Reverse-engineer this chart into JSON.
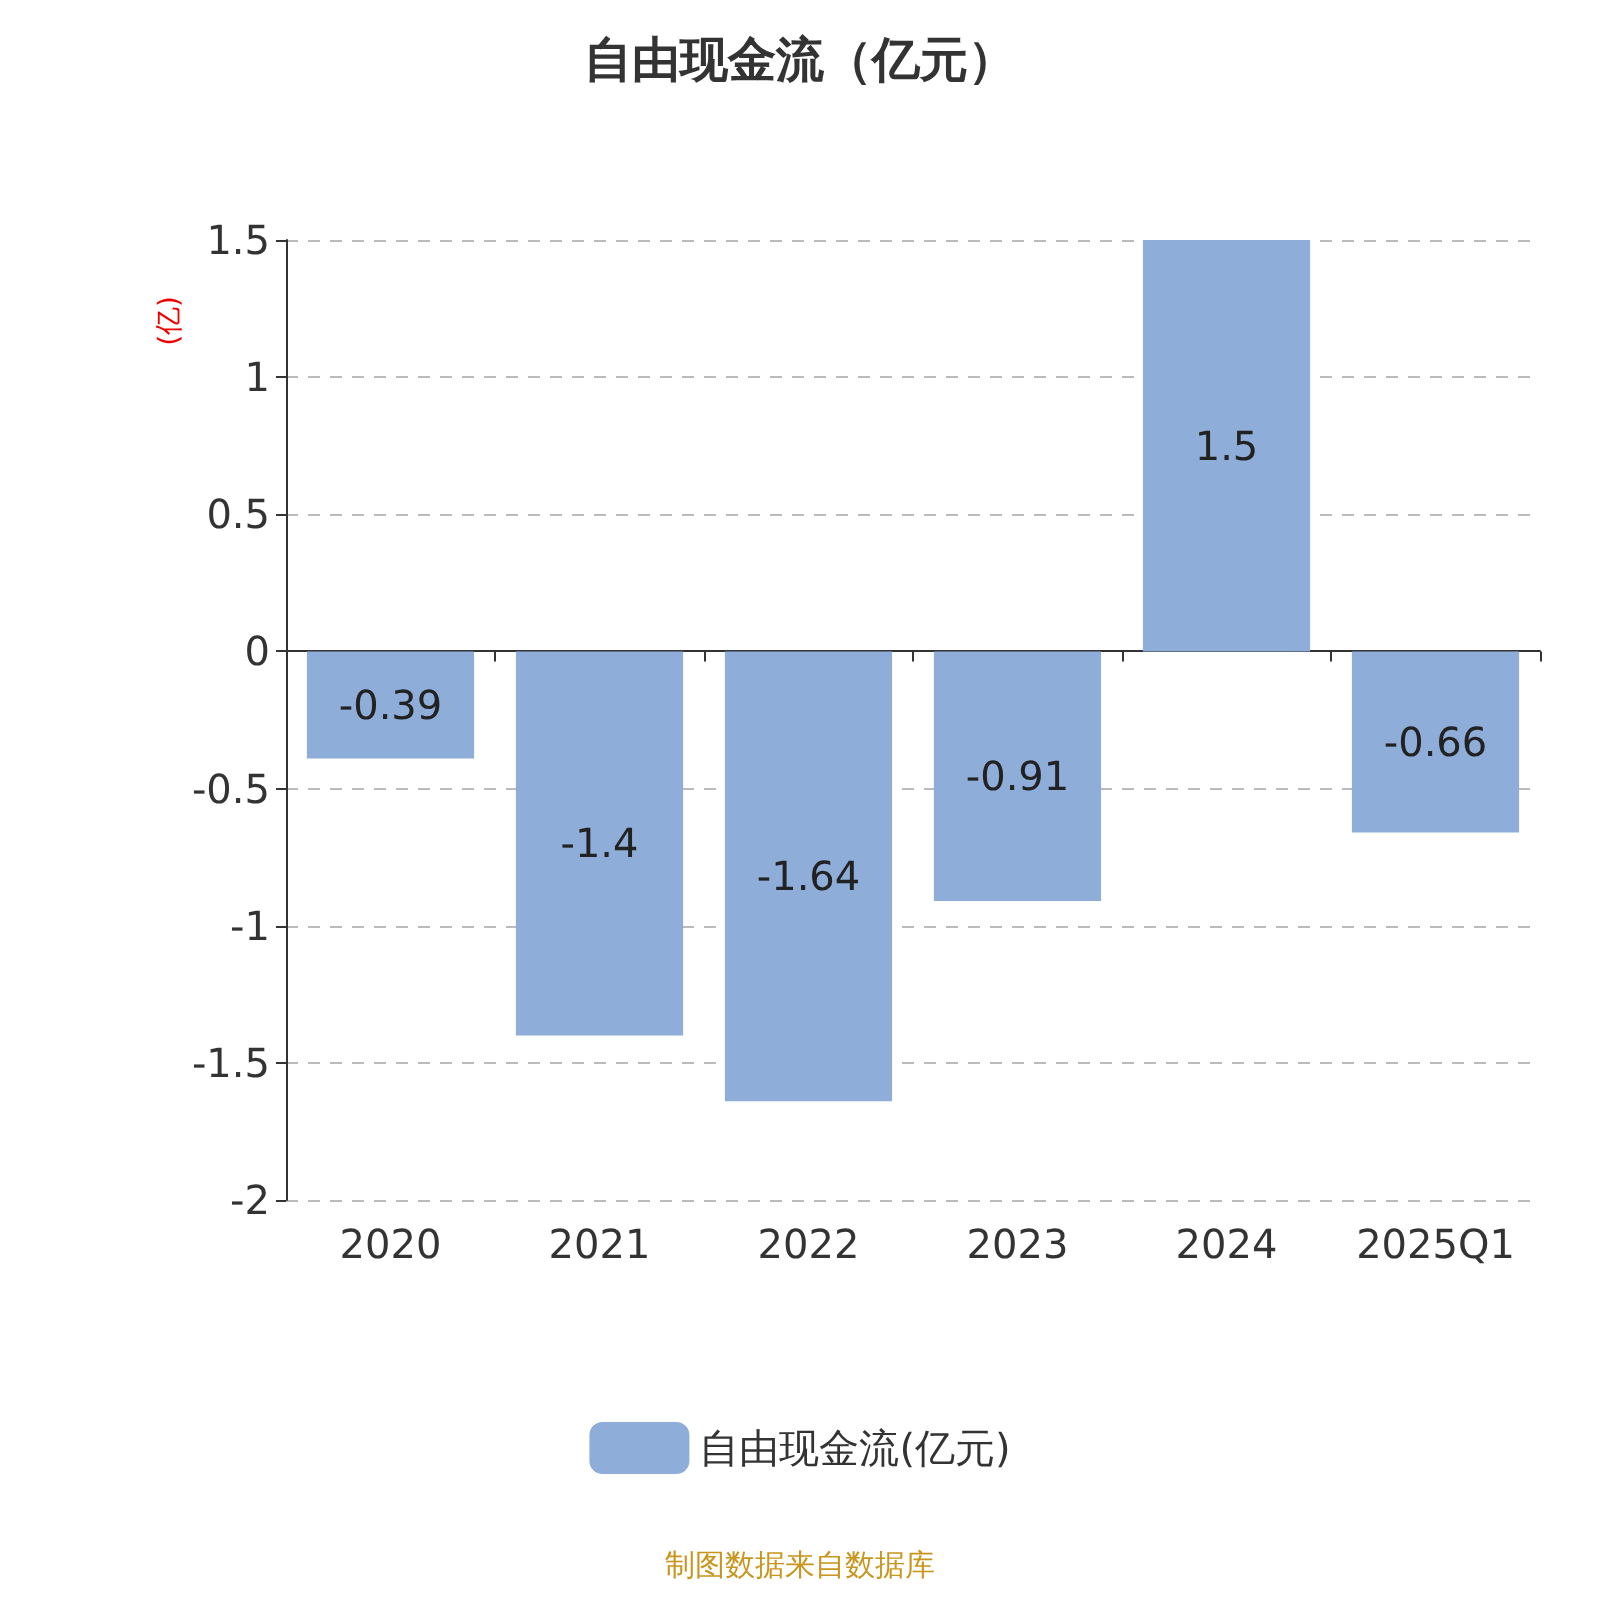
{
  "chart_data": {
    "type": "bar",
    "title": "自由现金流（亿元）",
    "ylabel": "(亿)",
    "categories": [
      "2020",
      "2021",
      "2022",
      "2023",
      "2024",
      "2025Q1"
    ],
    "series": [
      {
        "name": "自由现金流(亿元)",
        "color": "#8eadd9",
        "values": [
          -0.39,
          -1.4,
          -1.64,
          -0.91,
          1.5,
          -0.66
        ]
      }
    ],
    "ylim": [
      -2,
      1.5
    ],
    "yticks": [
      -2,
      -1.5,
      -1,
      -0.5,
      0,
      0.5,
      1,
      1.5
    ],
    "grid": "y",
    "legend": "bottom",
    "data_labels": true,
    "annotations": [
      "制图数据来自数据库"
    ]
  }
}
